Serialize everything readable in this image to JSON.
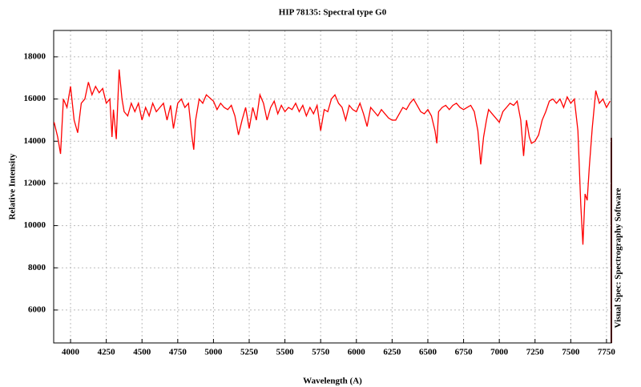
{
  "chart_data": {
    "type": "line",
    "title": "HIP 78135: Spectral type G0",
    "x_label": "Wavelength (A)",
    "y_label": "Relative Intensity",
    "annotation": "Visual Spec: Spectrography Software",
    "xlim": [
      3882,
      7784
    ],
    "ylim": [
      4440,
      19250
    ],
    "xticks": [
      4000,
      4250,
      4500,
      4750,
      5000,
      5250,
      5500,
      5750,
      6000,
      6250,
      6500,
      6750,
      7000,
      7250,
      7500,
      7750
    ],
    "yticks": [
      6000,
      8000,
      10000,
      12000,
      14000,
      16000,
      18000
    ],
    "grid": true,
    "series": [
      {
        "name": "HIP 78135",
        "color": "#ff0000",
        "x": [
          3885,
          3910,
          3930,
          3950,
          3975,
          4000,
          4025,
          4050,
          4075,
          4100,
          4125,
          4150,
          4175,
          4200,
          4225,
          4250,
          4275,
          4290,
          4300,
          4320,
          4340,
          4360,
          4375,
          4400,
          4425,
          4450,
          4475,
          4500,
          4525,
          4550,
          4575,
          4600,
          4625,
          4650,
          4675,
          4700,
          4720,
          4750,
          4775,
          4800,
          4825,
          4850,
          4862,
          4875,
          4900,
          4925,
          4950,
          5000,
          5025,
          5050,
          5075,
          5100,
          5125,
          5150,
          5175,
          5200,
          5225,
          5250,
          5275,
          5300,
          5325,
          5350,
          5375,
          5400,
          5425,
          5450,
          5475,
          5500,
          5525,
          5550,
          5575,
          5600,
          5625,
          5650,
          5675,
          5700,
          5725,
          5750,
          5775,
          5800,
          5825,
          5850,
          5875,
          5900,
          5925,
          5950,
          5975,
          6000,
          6025,
          6050,
          6075,
          6100,
          6125,
          6150,
          6175,
          6200,
          6225,
          6250,
          6275,
          6300,
          6325,
          6350,
          6375,
          6400,
          6425,
          6450,
          6475,
          6500,
          6525,
          6550,
          6563,
          6575,
          6600,
          6625,
          6650,
          6675,
          6700,
          6725,
          6750,
          6775,
          6800,
          6825,
          6850,
          6870,
          6890,
          6910,
          6925,
          6950,
          6975,
          7000,
          7025,
          7050,
          7075,
          7100,
          7125,
          7150,
          7170,
          7190,
          7210,
          7225,
          7250,
          7275,
          7300,
          7325,
          7350,
          7375,
          7400,
          7425,
          7450,
          7475,
          7500,
          7525,
          7550,
          7570,
          7585,
          7600,
          7615,
          7630,
          7650,
          7675,
          7700,
          7725,
          7750,
          7775
        ],
        "values": [
          14900,
          14200,
          13400,
          16000,
          15600,
          16600,
          15000,
          14400,
          15800,
          16000,
          16800,
          16200,
          16600,
          16300,
          16500,
          15800,
          16000,
          14200,
          15500,
          14100,
          17400,
          16000,
          15400,
          15200,
          15800,
          15400,
          15800,
          15000,
          15600,
          15200,
          15800,
          15400,
          15600,
          15800,
          15000,
          15700,
          14600,
          15800,
          16000,
          15600,
          15800,
          14200,
          13600,
          15000,
          16000,
          15800,
          16200,
          15900,
          15500,
          15800,
          15600,
          15500,
          15700,
          15200,
          14300,
          15000,
          15600,
          14600,
          15600,
          15000,
          16200,
          15800,
          15000,
          15600,
          15900,
          15300,
          15700,
          15400,
          15600,
          15500,
          15800,
          15400,
          15700,
          15200,
          15600,
          15300,
          15700,
          14500,
          15500,
          15400,
          16000,
          16200,
          15800,
          15600,
          15000,
          15700,
          15500,
          15400,
          15800,
          15300,
          14700,
          15600,
          15400,
          15200,
          15500,
          15300,
          15100,
          15000,
          15000,
          15300,
          15600,
          15500,
          15800,
          16000,
          15700,
          15400,
          15300,
          15500,
          15200,
          14500,
          13900,
          15400,
          15600,
          15700,
          15500,
          15700,
          15800,
          15600,
          15500,
          15600,
          15700,
          15400,
          14500,
          12900,
          14200,
          15000,
          15500,
          15300,
          15100,
          14900,
          15400,
          15600,
          15800,
          15700,
          15900,
          15000,
          13300,
          15000,
          14200,
          13900,
          14000,
          14300,
          15000,
          15400,
          15900,
          16000,
          15800,
          16000,
          15600,
          16100,
          15800,
          16000,
          14500,
          11000,
          9100,
          11500,
          11200,
          12800,
          14600,
          16400,
          15800,
          16000,
          15600,
          15900
        ]
      }
    ]
  }
}
